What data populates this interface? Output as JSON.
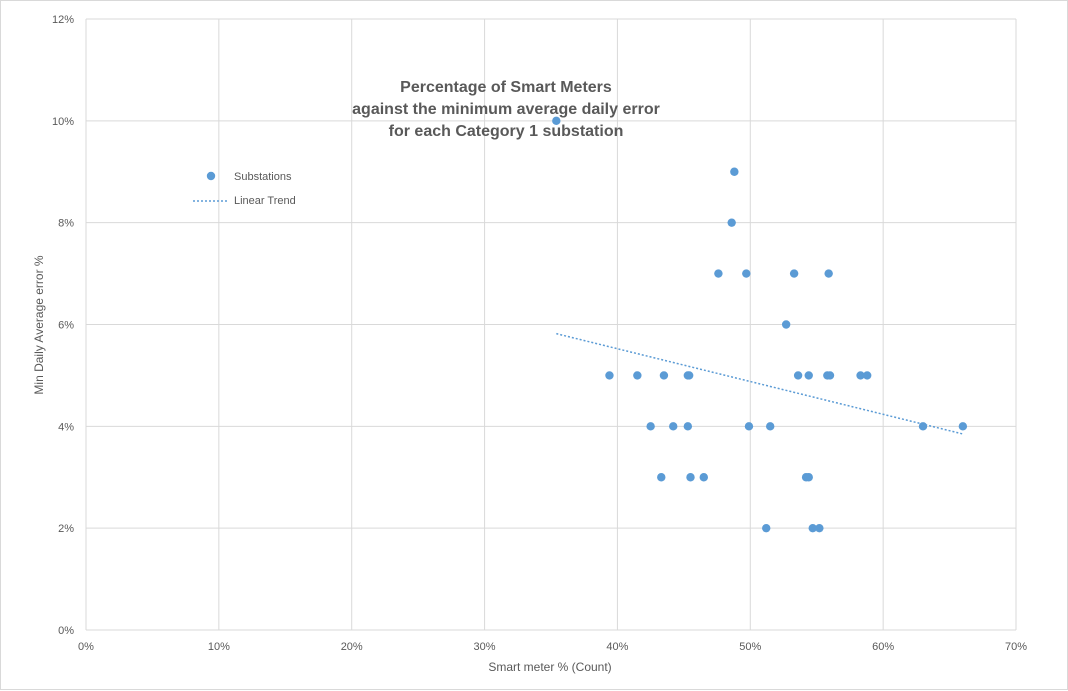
{
  "chart_data": {
    "type": "scatter",
    "title_lines": [
      "Percentage of Smart Meters",
      "against the minimum average daily error",
      "for each Category 1 substation"
    ],
    "xlabel": "Smart meter % (Count)",
    "ylabel": "Min Daily Average error %",
    "xlim": [
      0,
      70
    ],
    "ylim": [
      0,
      12
    ],
    "x_ticks": [
      0,
      10,
      20,
      30,
      40,
      50,
      60,
      70
    ],
    "y_ticks": [
      0,
      2,
      4,
      6,
      8,
      10,
      12
    ],
    "x_tick_labels": [
      "0%",
      "10%",
      "20%",
      "30%",
      "40%",
      "50%",
      "60%",
      "70%"
    ],
    "y_tick_labels": [
      "0%",
      "2%",
      "4%",
      "6%",
      "8%",
      "10%",
      "12%"
    ],
    "grid": true,
    "legend_position": "upper-left",
    "colors": {
      "points": "#5b9bd5",
      "trend": "#5b9bd5",
      "grid": "#d9d9d9",
      "text": "#595959"
    },
    "series": [
      {
        "name": "Substations",
        "points": [
          [
            35.4,
            10
          ],
          [
            48.8,
            9
          ],
          [
            48.6,
            8
          ],
          [
            47.6,
            7
          ],
          [
            49.7,
            7
          ],
          [
            53.3,
            7
          ],
          [
            55.9,
            7
          ],
          [
            52.7,
            6
          ],
          [
            39.4,
            5
          ],
          [
            41.5,
            5
          ],
          [
            43.5,
            5
          ],
          [
            45.3,
            5
          ],
          [
            45.4,
            5
          ],
          [
            53.6,
            5
          ],
          [
            54.4,
            5
          ],
          [
            55.8,
            5
          ],
          [
            56.0,
            5
          ],
          [
            58.3,
            5
          ],
          [
            58.8,
            5
          ],
          [
            42.5,
            4
          ],
          [
            44.2,
            4
          ],
          [
            45.3,
            4
          ],
          [
            49.9,
            4
          ],
          [
            51.5,
            4
          ],
          [
            63.0,
            4
          ],
          [
            66.0,
            4
          ],
          [
            43.3,
            3
          ],
          [
            45.5,
            3
          ],
          [
            46.5,
            3
          ],
          [
            54.2,
            3
          ],
          [
            54.4,
            3
          ],
          [
            51.2,
            2
          ],
          [
            54.7,
            2
          ],
          [
            55.2,
            2
          ]
        ]
      },
      {
        "name": "Linear Trend",
        "line": [
          [
            35.4,
            5.82
          ],
          [
            66.0,
            3.85
          ]
        ]
      }
    ]
  }
}
